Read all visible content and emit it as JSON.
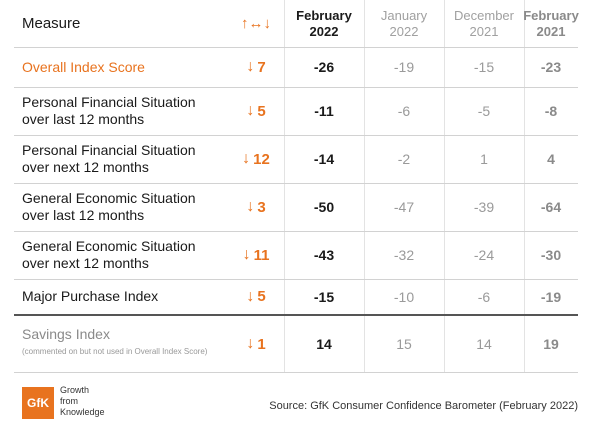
{
  "chart_data": {
    "type": "table",
    "header": {
      "measure": "Measure",
      "change_symbol": "↑↔↓",
      "columns": [
        {
          "line1": "February",
          "line2": "2022"
        },
        {
          "line1": "January",
          "line2": "2022"
        },
        {
          "line1": "December",
          "line2": "2021"
        },
        {
          "line1": "February",
          "line2": "2021"
        }
      ]
    },
    "rows": [
      {
        "measure_line1": "Overall Index Score",
        "measure_line2": "",
        "change_arrow": "↓",
        "change": "7",
        "values": [
          "-26",
          "-19",
          "-15",
          "-23"
        ]
      },
      {
        "measure_line1": "Personal Financial Situation",
        "measure_line2": "over last 12 months",
        "change_arrow": "↓",
        "change": "5",
        "values": [
          "-11",
          "-6",
          "-5",
          "-8"
        ]
      },
      {
        "measure_line1": "Personal Financial Situation",
        "measure_line2": "over next 12 months",
        "change_arrow": "↓",
        "change": "12",
        "values": [
          "-14",
          "-2",
          "1",
          "4"
        ]
      },
      {
        "measure_line1": "General Economic Situation",
        "measure_line2": "over last 12 months",
        "change_arrow": "↓",
        "change": "3",
        "values": [
          "-50",
          "-47",
          "-39",
          "-64"
        ]
      },
      {
        "measure_line1": "General Economic Situation",
        "measure_line2": "over next 12 months",
        "change_arrow": "↓",
        "change": "11",
        "values": [
          "-43",
          "-32",
          "-24",
          "-30"
        ]
      },
      {
        "measure_line1": "Major Purchase Index",
        "measure_line2": "",
        "change_arrow": "↓",
        "change": "5",
        "values": [
          "-15",
          "-10",
          "-6",
          "-19"
        ]
      },
      {
        "measure_line1": "Savings Index",
        "measure_line2": "",
        "note": "(commented on but not used in Overall Index Score)",
        "change_arrow": "↓",
        "change": "1",
        "values": [
          "14",
          "15",
          "14",
          "19"
        ]
      }
    ]
  },
  "footer": {
    "logo_text": "GfK",
    "tagline_1": "Growth",
    "tagline_2": "from",
    "tagline_3": "Knowledge",
    "source": "Source: GfK Consumer Confidence Barometer (February 2022)"
  },
  "colors": {
    "accent": "#e8731f",
    "muted": "#9a9a9a",
    "text": "#1a1a1a"
  }
}
